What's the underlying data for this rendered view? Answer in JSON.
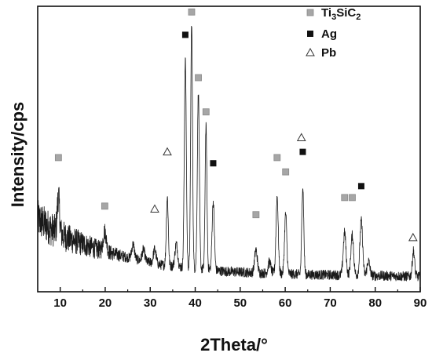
{
  "chart_data": {
    "type": "line",
    "xlabel": "2Theta/°",
    "ylabel": "Intensity/cps",
    "xlim": [
      5,
      90
    ],
    "x_ticks": [
      10,
      20,
      30,
      40,
      50,
      60,
      70,
      80,
      90
    ],
    "y_ticks_shown": false,
    "grid": false,
    "legend_position": "top-right",
    "legend": [
      {
        "label_main": "Ti",
        "label_sub1": "3",
        "label_mid": "SiC",
        "label_sub2": "2",
        "marker": "gray-square",
        "color": "#a6a6a6"
      },
      {
        "label_main": "Ag",
        "marker": "black-square",
        "color": "#111111"
      },
      {
        "label_main": "Pb",
        "marker": "open-triangle",
        "color": "#ffffff"
      }
    ],
    "series": [
      {
        "line_color": "#1a1a1a",
        "baseline": [
          [
            5,
            0.255
          ],
          [
            8,
            0.22
          ],
          [
            12,
            0.185
          ],
          [
            18,
            0.15
          ],
          [
            25,
            0.12
          ],
          [
            32,
            0.095
          ],
          [
            40,
            0.08
          ],
          [
            48,
            0.07
          ],
          [
            56,
            0.065
          ],
          [
            65,
            0.06
          ],
          [
            75,
            0.058
          ],
          [
            85,
            0.055
          ],
          [
            90,
            0.053
          ]
        ],
        "peaks": [
          {
            "x": 9.6,
            "height": 0.13,
            "width": 0.25
          },
          {
            "x": 19.9,
            "height": 0.07,
            "width": 0.35
          },
          {
            "x": 26.2,
            "height": 0.05,
            "width": 0.3
          },
          {
            "x": 28.5,
            "height": 0.04,
            "width": 0.3
          },
          {
            "x": 31.0,
            "height": 0.05,
            "width": 0.3
          },
          {
            "x": 33.8,
            "height": 0.24,
            "width": 0.22
          },
          {
            "x": 35.8,
            "height": 0.08,
            "width": 0.3
          },
          {
            "x": 37.8,
            "height": 0.73,
            "width": 0.22
          },
          {
            "x": 39.2,
            "height": 0.86,
            "width": 0.2
          },
          {
            "x": 40.7,
            "height": 0.62,
            "width": 0.22
          },
          {
            "x": 42.4,
            "height": 0.5,
            "width": 0.2
          },
          {
            "x": 44.0,
            "height": 0.24,
            "width": 0.25
          },
          {
            "x": 53.5,
            "height": 0.08,
            "width": 0.3
          },
          {
            "x": 56.5,
            "height": 0.04,
            "width": 0.3
          },
          {
            "x": 58.2,
            "height": 0.27,
            "width": 0.25
          },
          {
            "x": 60.1,
            "height": 0.21,
            "width": 0.25
          },
          {
            "x": 63.9,
            "height": 0.31,
            "width": 0.22
          },
          {
            "x": 73.2,
            "height": 0.15,
            "width": 0.3
          },
          {
            "x": 74.9,
            "height": 0.14,
            "width": 0.3
          },
          {
            "x": 76.9,
            "height": 0.19,
            "width": 0.3
          },
          {
            "x": 78.5,
            "height": 0.05,
            "width": 0.3
          },
          {
            "x": 88.5,
            "height": 0.09,
            "width": 0.25
          }
        ]
      }
    ],
    "phase_markers": [
      {
        "phase": "Ti3SiC2",
        "x": 9.6,
        "y": 0.47
      },
      {
        "phase": "Ti3SiC2",
        "x": 19.9,
        "y": 0.3
      },
      {
        "phase": "Ti3SiC2",
        "x": 39.2,
        "y": 0.98
      },
      {
        "phase": "Ti3SiC2",
        "x": 40.7,
        "y": 0.75
      },
      {
        "phase": "Ti3SiC2",
        "x": 42.4,
        "y": 0.63
      },
      {
        "phase": "Ti3SiC2",
        "x": 53.5,
        "y": 0.27
      },
      {
        "phase": "Ti3SiC2",
        "x": 58.2,
        "y": 0.47
      },
      {
        "phase": "Ti3SiC2",
        "x": 60.1,
        "y": 0.42
      },
      {
        "phase": "Ti3SiC2",
        "x": 73.2,
        "y": 0.33
      },
      {
        "phase": "Ti3SiC2",
        "x": 74.9,
        "y": 0.33
      },
      {
        "phase": "Ag",
        "x": 37.8,
        "y": 0.9
      },
      {
        "phase": "Ag",
        "x": 44.0,
        "y": 0.45
      },
      {
        "phase": "Ag",
        "x": 63.9,
        "y": 0.49
      },
      {
        "phase": "Ag",
        "x": 76.9,
        "y": 0.37
      },
      {
        "phase": "Pb",
        "x": 31.0,
        "y": 0.29
      },
      {
        "phase": "Pb",
        "x": 33.8,
        "y": 0.49
      },
      {
        "phase": "Pb",
        "x": 63.6,
        "y": 0.54
      },
      {
        "phase": "Pb",
        "x": 88.4,
        "y": 0.19
      }
    ]
  }
}
